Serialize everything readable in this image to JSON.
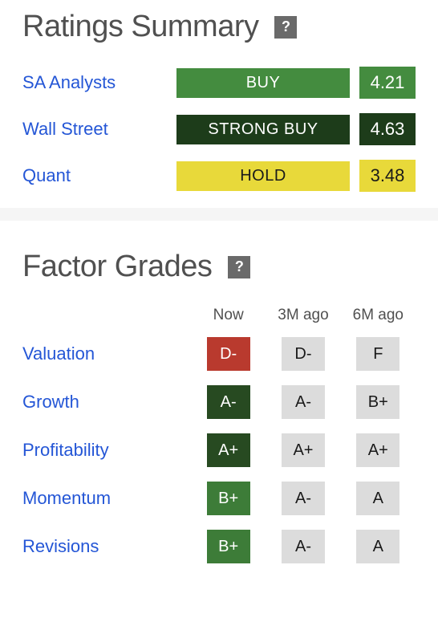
{
  "colors": {
    "title_gray": "#505050",
    "link_blue": "#2456d6",
    "help_bg": "#6a6a6a",
    "buy_bg": "#448c3f",
    "buy_text": "#ffffff",
    "strong_buy_bg": "#1d3c1a",
    "strong_buy_text": "#ffffff",
    "hold_bg": "#e8d93a",
    "hold_text": "#1a1a1a",
    "grade_d_bg": "#b93a2e",
    "grade_d_text": "#ffffff",
    "grade_a_now_bg": "#274a21",
    "grade_a_now_text": "#ffffff",
    "grade_b_now_bg": "#3d7c38",
    "grade_b_now_text": "#ffffff",
    "grade_past_bg": "#dcdcdc",
    "grade_past_text": "#1a1a1a"
  },
  "ratings_summary": {
    "title": "Ratings Summary",
    "help_label": "?",
    "rows": [
      {
        "label": "SA Analysts",
        "rating_text": "BUY",
        "rating_bg": "#448c3f",
        "rating_color": "#ffffff",
        "score_text": "4.21",
        "score_bg": "#448c3f",
        "score_color": "#ffffff"
      },
      {
        "label": "Wall Street",
        "rating_text": "STRONG BUY",
        "rating_bg": "#1d3c1a",
        "rating_color": "#ffffff",
        "score_text": "4.63",
        "score_bg": "#1d3c1a",
        "score_color": "#ffffff"
      },
      {
        "label": "Quant",
        "rating_text": "HOLD",
        "rating_bg": "#e8d93a",
        "rating_color": "#1a1a1a",
        "score_text": "3.48",
        "score_bg": "#e8d93a",
        "score_color": "#1a1a1a"
      }
    ]
  },
  "factor_grades": {
    "title": "Factor Grades",
    "help_label": "?",
    "columns": [
      "Now",
      "3M ago",
      "6M ago"
    ],
    "rows": [
      {
        "label": "Valuation",
        "grades": [
          {
            "text": "D-",
            "bg": "#b93a2e",
            "color": "#ffffff"
          },
          {
            "text": "D-",
            "bg": "#dcdcdc",
            "color": "#1a1a1a"
          },
          {
            "text": "F",
            "bg": "#dcdcdc",
            "color": "#1a1a1a"
          }
        ]
      },
      {
        "label": "Growth",
        "grades": [
          {
            "text": "A-",
            "bg": "#274a21",
            "color": "#ffffff"
          },
          {
            "text": "A-",
            "bg": "#dcdcdc",
            "color": "#1a1a1a"
          },
          {
            "text": "B+",
            "bg": "#dcdcdc",
            "color": "#1a1a1a"
          }
        ]
      },
      {
        "label": "Profitability",
        "grades": [
          {
            "text": "A+",
            "bg": "#274a21",
            "color": "#ffffff"
          },
          {
            "text": "A+",
            "bg": "#dcdcdc",
            "color": "#1a1a1a"
          },
          {
            "text": "A+",
            "bg": "#dcdcdc",
            "color": "#1a1a1a"
          }
        ]
      },
      {
        "label": "Momentum",
        "grades": [
          {
            "text": "B+",
            "bg": "#3d7c38",
            "color": "#ffffff"
          },
          {
            "text": "A-",
            "bg": "#dcdcdc",
            "color": "#1a1a1a"
          },
          {
            "text": "A",
            "bg": "#dcdcdc",
            "color": "#1a1a1a"
          }
        ]
      },
      {
        "label": "Revisions",
        "grades": [
          {
            "text": "B+",
            "bg": "#3d7c38",
            "color": "#ffffff"
          },
          {
            "text": "A-",
            "bg": "#dcdcdc",
            "color": "#1a1a1a"
          },
          {
            "text": "A",
            "bg": "#dcdcdc",
            "color": "#1a1a1a"
          }
        ]
      }
    ]
  }
}
